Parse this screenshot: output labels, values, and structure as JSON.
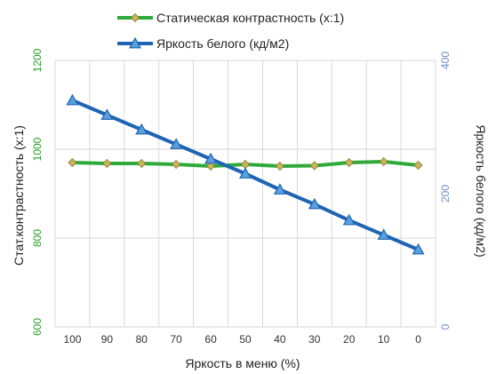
{
  "chart_data": {
    "type": "line",
    "x": [
      100,
      90,
      80,
      70,
      60,
      50,
      40,
      30,
      20,
      10,
      0
    ],
    "xlabel": "Яркость в меню (%)",
    "ylabel": "Стат.контрастность  (x:1)",
    "y2label": "Яркость белого (кд/м2)",
    "ylim": [
      600,
      1200
    ],
    "yticks": [
      600,
      800,
      1000,
      1200
    ],
    "y2lim": [
      0,
      400
    ],
    "y2ticks": [
      0,
      200,
      400
    ],
    "grid": true,
    "legend_position": "top",
    "series": [
      {
        "name": "Статическая контрастность  (x:1)",
        "axis": "left",
        "color": "#2eaa3a",
        "marker": "diamond",
        "marker_color": "#c8b55a",
        "values": [
          970,
          968,
          968,
          966,
          962,
          966,
          962,
          963,
          970,
          972,
          964
        ]
      },
      {
        "name": "Яркость белого (кд/м2)",
        "axis": "right",
        "color": "#1f64b4",
        "marker": "triangle",
        "marker_color": "#5aa0dc",
        "values": [
          340,
          318,
          296,
          274,
          252,
          230,
          206,
          184,
          160,
          138,
          116
        ]
      }
    ]
  }
}
